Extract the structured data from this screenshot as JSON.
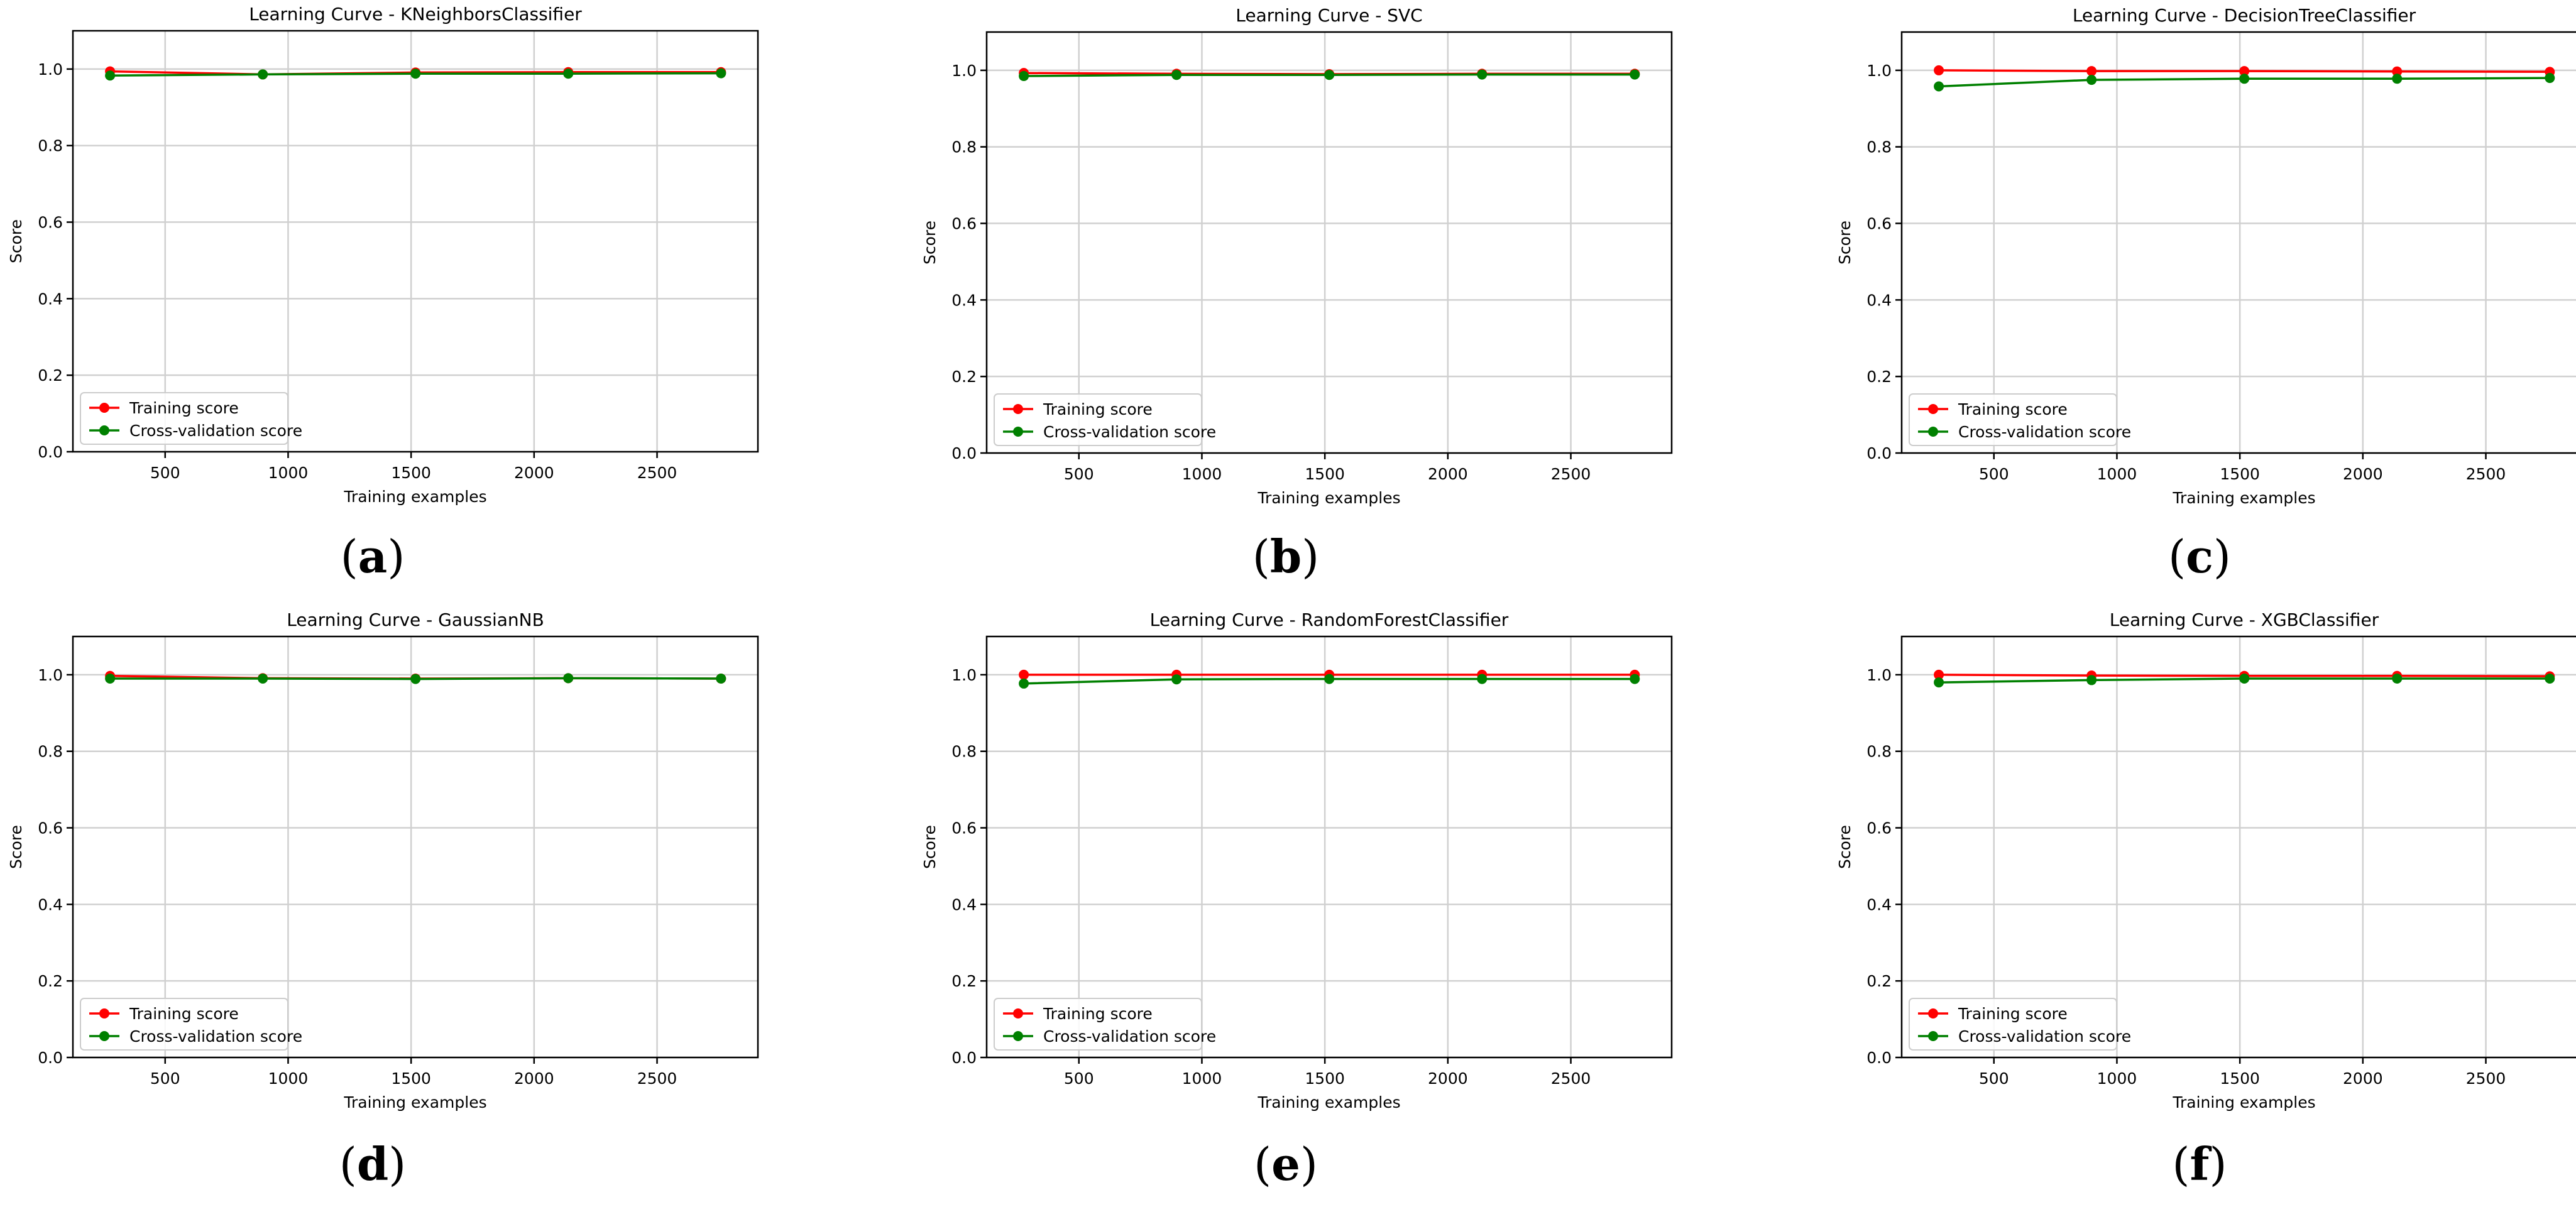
{
  "chart_data": [
    {
      "type": "line",
      "panel_label": "a",
      "title": "Learning Curve - KNeighborsClassifier",
      "xlabel": "Training examples",
      "ylabel": "Score",
      "x": [
        276,
        897,
        1518,
        2139,
        2760
      ],
      "xticks": [
        500,
        1000,
        1500,
        2000,
        2500
      ],
      "yticks": [
        0.0,
        0.2,
        0.4,
        0.6,
        0.8,
        1.0
      ],
      "xlim": [
        125,
        2910
      ],
      "ylim": [
        0.0,
        1.1
      ],
      "grid": true,
      "legend_position": "lower-left",
      "series": [
        {
          "name": "Training score",
          "color": "#ff0000",
          "values": [
            0.994,
            0.986,
            0.991,
            0.992,
            0.992
          ]
        },
        {
          "name": "Cross-validation score",
          "color": "#008000",
          "values": [
            0.983,
            0.986,
            0.988,
            0.988,
            0.989
          ]
        }
      ]
    },
    {
      "type": "line",
      "panel_label": "b",
      "title": "Learning Curve - SVC",
      "xlabel": "Training examples",
      "ylabel": "Score",
      "x": [
        276,
        897,
        1518,
        2139,
        2760
      ],
      "xticks": [
        500,
        1000,
        1500,
        2000,
        2500
      ],
      "yticks": [
        0.0,
        0.2,
        0.4,
        0.6,
        0.8,
        1.0
      ],
      "xlim": [
        125,
        2910
      ],
      "ylim": [
        0.0,
        1.1
      ],
      "grid": true,
      "legend_position": "lower-left",
      "series": [
        {
          "name": "Training score",
          "color": "#ff0000",
          "values": [
            0.993,
            0.991,
            0.99,
            0.991,
            0.991
          ]
        },
        {
          "name": "Cross-validation score",
          "color": "#008000",
          "values": [
            0.985,
            0.988,
            0.988,
            0.989,
            0.989
          ]
        }
      ]
    },
    {
      "type": "line",
      "panel_label": "c",
      "title": "Learning Curve - DecisionTreeClassifier",
      "xlabel": "Training examples",
      "ylabel": "Score",
      "x": [
        276,
        897,
        1518,
        2139,
        2760
      ],
      "xticks": [
        500,
        1000,
        1500,
        2000,
        2500
      ],
      "yticks": [
        0.0,
        0.2,
        0.4,
        0.6,
        0.8,
        1.0
      ],
      "xlim": [
        125,
        2910
      ],
      "ylim": [
        0.0,
        1.1
      ],
      "grid": true,
      "legend_position": "lower-left",
      "series": [
        {
          "name": "Training score",
          "color": "#ff0000",
          "values": [
            1.0,
            0.998,
            0.998,
            0.997,
            0.996
          ]
        },
        {
          "name": "Cross-validation score",
          "color": "#008000",
          "values": [
            0.958,
            0.975,
            0.978,
            0.978,
            0.98
          ]
        }
      ]
    },
    {
      "type": "line",
      "panel_label": "d",
      "title": "Learning Curve - GaussianNB",
      "xlabel": "Training examples",
      "ylabel": "Score",
      "x": [
        276,
        897,
        1518,
        2139,
        2760
      ],
      "xticks": [
        500,
        1000,
        1500,
        2000,
        2500
      ],
      "yticks": [
        0.0,
        0.2,
        0.4,
        0.6,
        0.8,
        1.0
      ],
      "xlim": [
        125,
        2910
      ],
      "ylim": [
        0.0,
        1.1
      ],
      "grid": true,
      "legend_position": "lower-left",
      "series": [
        {
          "name": "Training score",
          "color": "#ff0000",
          "values": [
            0.997,
            0.991,
            0.99,
            0.991,
            0.99
          ]
        },
        {
          "name": "Cross-validation score",
          "color": "#008000",
          "values": [
            0.99,
            0.99,
            0.989,
            0.991,
            0.99
          ]
        }
      ]
    },
    {
      "type": "line",
      "panel_label": "e",
      "title": "Learning Curve - RandomForestClassifier",
      "xlabel": "Training examples",
      "ylabel": "Score",
      "x": [
        276,
        897,
        1518,
        2139,
        2760
      ],
      "xticks": [
        500,
        1000,
        1500,
        2000,
        2500
      ],
      "yticks": [
        0.0,
        0.2,
        0.4,
        0.6,
        0.8,
        1.0
      ],
      "xlim": [
        125,
        2910
      ],
      "ylim": [
        0.0,
        1.1
      ],
      "grid": true,
      "legend_position": "lower-left",
      "series": [
        {
          "name": "Training score",
          "color": "#ff0000",
          "values": [
            1.0,
            1.0,
            1.0,
            1.0,
            1.0
          ]
        },
        {
          "name": "Cross-validation score",
          "color": "#008000",
          "values": [
            0.977,
            0.988,
            0.989,
            0.989,
            0.989
          ]
        }
      ]
    },
    {
      "type": "line",
      "panel_label": "f",
      "title": "Learning Curve - XGBClassifier",
      "xlabel": "Training examples",
      "ylabel": "Score",
      "x": [
        276,
        897,
        1518,
        2139,
        2760
      ],
      "xticks": [
        500,
        1000,
        1500,
        2000,
        2500
      ],
      "yticks": [
        0.0,
        0.2,
        0.4,
        0.6,
        0.8,
        1.0
      ],
      "xlim": [
        125,
        2910
      ],
      "ylim": [
        0.0,
        1.1
      ],
      "grid": true,
      "legend_position": "lower-left",
      "series": [
        {
          "name": "Training score",
          "color": "#ff0000",
          "values": [
            1.0,
            0.998,
            0.997,
            0.997,
            0.996
          ]
        },
        {
          "name": "Cross-validation score",
          "color": "#008000",
          "values": [
            0.98,
            0.986,
            0.99,
            0.99,
            0.99
          ]
        }
      ]
    }
  ]
}
